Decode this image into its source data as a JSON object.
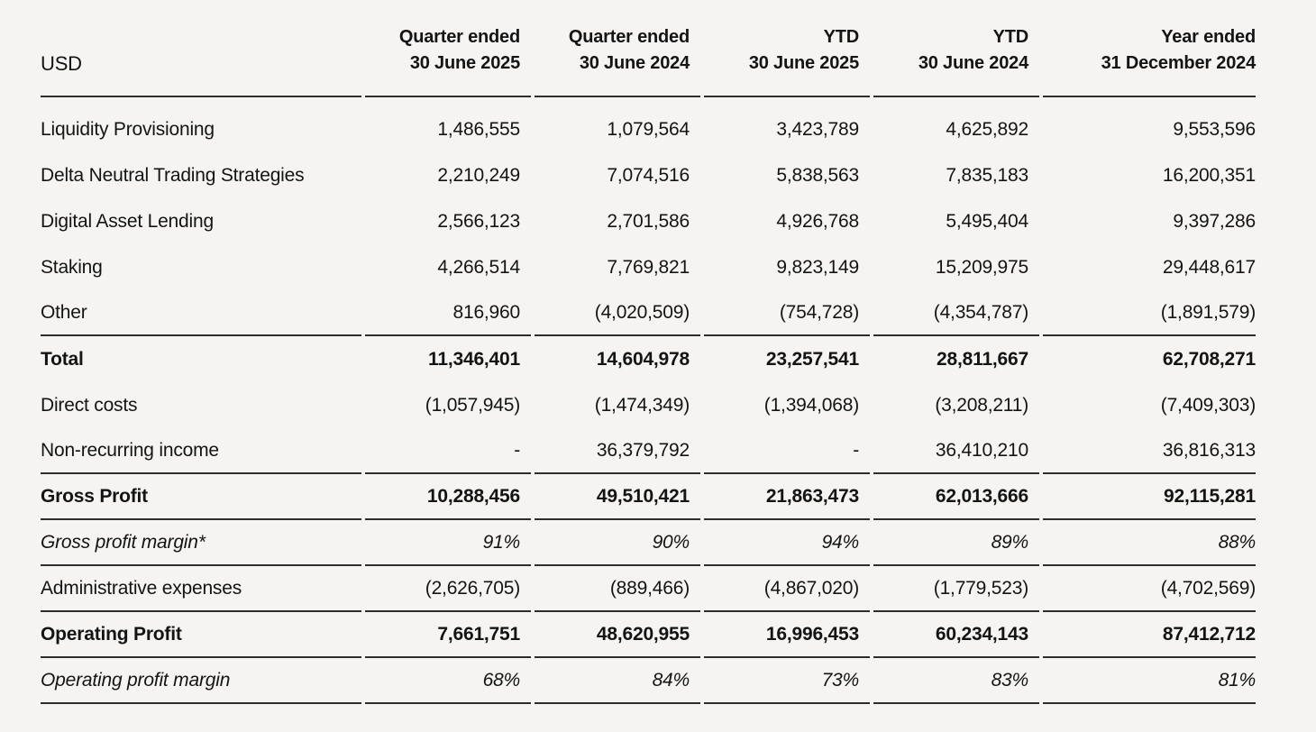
{
  "page": {
    "background_color": "#f5f4f2",
    "text_color": "#141414",
    "rule_color": "#2d2d2d"
  },
  "table": {
    "unit_label": "USD",
    "columns": [
      {
        "line1": "Quarter ended",
        "line2": "30 June 2025"
      },
      {
        "line1": "Quarter ended",
        "line2": "30 June 2024"
      },
      {
        "line1": "YTD",
        "line2": "30 June 2025"
      },
      {
        "line1": "YTD",
        "line2": "30 June 2024"
      },
      {
        "line1": "Year ended",
        "line2": "31 December 2024"
      }
    ],
    "rows": [
      {
        "label": "Liquidity Provisioning",
        "values": [
          "1,486,555",
          "1,079,564",
          "3,423,789",
          "4,625,892",
          "9,553,596"
        ],
        "style": "normal",
        "rule_below": false
      },
      {
        "label": "Delta Neutral Trading Strategies",
        "values": [
          "2,210,249",
          "7,074,516",
          "5,838,563",
          "7,835,183",
          "16,200,351"
        ],
        "style": "normal",
        "rule_below": false
      },
      {
        "label": "Digital Asset Lending",
        "values": [
          "2,566,123",
          "2,701,586",
          "4,926,768",
          "5,495,404",
          "9,397,286"
        ],
        "style": "normal",
        "rule_below": false
      },
      {
        "label": "Staking",
        "values": [
          "4,266,514",
          "7,769,821",
          "9,823,149",
          "15,209,975",
          "29,448,617"
        ],
        "style": "normal",
        "rule_below": false
      },
      {
        "label": "Other",
        "values": [
          "816,960",
          "(4,020,509)",
          "(754,728)",
          "(4,354,787)",
          "(1,891,579)"
        ],
        "style": "normal",
        "rule_below": true
      },
      {
        "label": "Total",
        "values": [
          "11,346,401",
          "14,604,978",
          "23,257,541",
          "28,811,667",
          "62,708,271"
        ],
        "style": "bold",
        "rule_below": false
      },
      {
        "label": "Direct costs",
        "values": [
          "(1,057,945)",
          "(1,474,349)",
          "(1,394,068)",
          "(3,208,211)",
          "(7,409,303)"
        ],
        "style": "normal",
        "rule_below": false
      },
      {
        "label": "Non-recurring income",
        "values": [
          "-",
          "36,379,792",
          "-",
          "36,410,210",
          "36,816,313"
        ],
        "style": "normal",
        "rule_below": true
      },
      {
        "label": "Gross Profit",
        "values": [
          "10,288,456",
          "49,510,421",
          "21,863,473",
          "62,013,666",
          "92,115,281"
        ],
        "style": "bold",
        "rule_below": true
      },
      {
        "label": "Gross profit margin*",
        "values": [
          "91%",
          "90%",
          "94%",
          "89%",
          "88%"
        ],
        "style": "italic",
        "rule_below": true
      },
      {
        "label": "Administrative expenses",
        "values": [
          "(2,626,705)",
          "(889,466)",
          "(4,867,020)",
          "(1,779,523)",
          "(4,702,569)"
        ],
        "style": "normal",
        "rule_below": true
      },
      {
        "label": "Operating Profit",
        "values": [
          "7,661,751",
          "48,620,955",
          "16,996,453",
          "60,234,143",
          "87,412,712"
        ],
        "style": "bold",
        "rule_below": true
      },
      {
        "label": "Operating profit margin",
        "values": [
          "68%",
          "84%",
          "73%",
          "83%",
          "81%"
        ],
        "style": "italic",
        "rule_below": true
      }
    ]
  }
}
